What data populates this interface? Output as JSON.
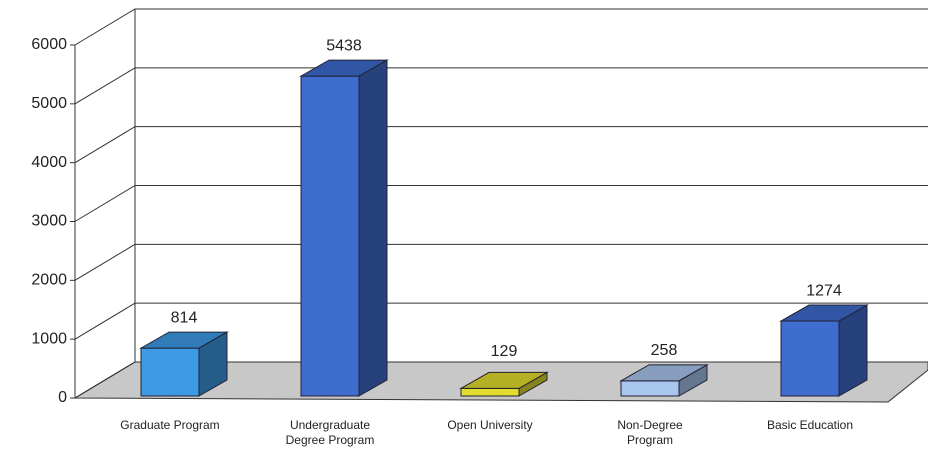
{
  "chart_data": {
    "type": "bar3d",
    "categories": [
      "Graduate Program",
      "Undergraduate Degree Program",
      "Open University",
      "Non-Degree Program",
      "Basic Education"
    ],
    "values": [
      814,
      5438,
      129,
      258,
      1274
    ],
    "colors": [
      "#3d9be6",
      "#3f6ccf",
      "#e3dc2e",
      "#a9c6ef",
      "#3f6ccf"
    ],
    "ylim": [
      0,
      6000
    ],
    "yticks": [
      0,
      1000,
      2000,
      3000,
      4000,
      5000,
      6000
    ],
    "grid": true
  }
}
